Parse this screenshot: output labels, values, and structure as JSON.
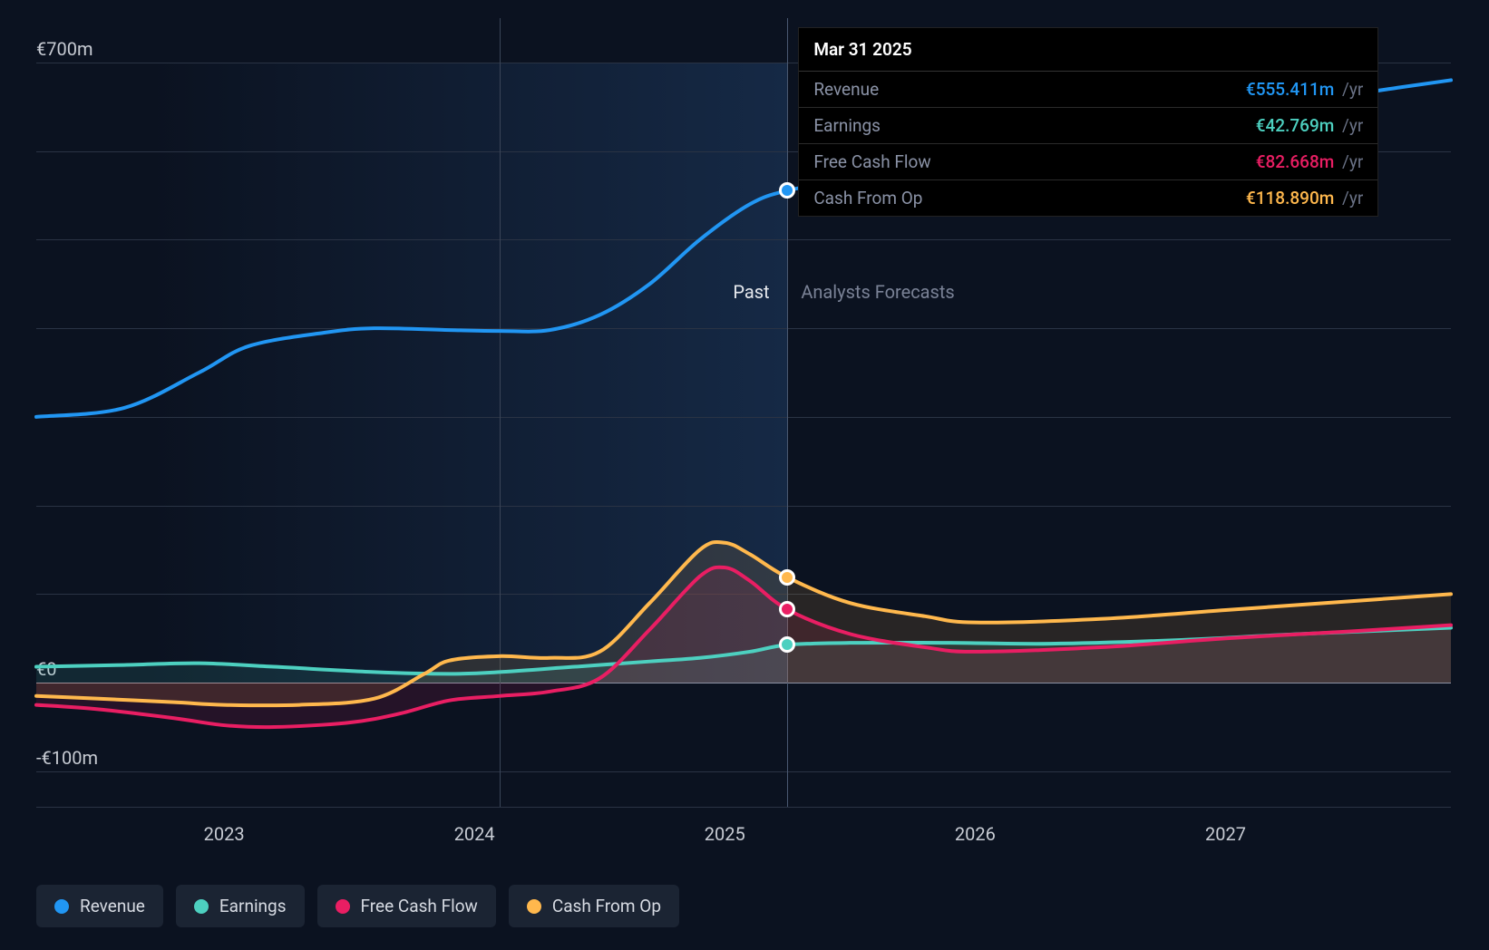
{
  "chart": {
    "type": "line",
    "background_color": "#0b1220",
    "grid_color": "#2a3344",
    "zero_line_color": "#8a92a6",
    "divider_color": "#3a4558",
    "cursor_color": "#4a5870",
    "text_color": "#c8ccd4",
    "label_fontsize": 20,
    "past_gradient_from": "rgba(30,60,100,0.55)",
    "past_gradient_to": "rgba(30,60,100,0.0)",
    "x_axis": {
      "ticks": [
        2023,
        2024,
        2025,
        2026,
        2027
      ],
      "min": 2022.25,
      "max": 2027.9,
      "divider_at": 2024.1,
      "cursor_at": 2025.25
    },
    "y_axis": {
      "ticks": [
        {
          "value": 700,
          "label": "€700m"
        },
        {
          "value": 0,
          "label": "€0"
        },
        {
          "value": -100,
          "label": "-€100m"
        }
      ],
      "minor_grid": [
        600,
        500,
        400,
        300,
        200,
        100
      ],
      "min": -140,
      "max": 750
    },
    "region_labels": {
      "past": "Past",
      "forecast": "Analysts Forecasts"
    },
    "series": [
      {
        "key": "revenue",
        "label": "Revenue",
        "color": "#2196f3",
        "line_width": 4,
        "points": [
          [
            2022.25,
            300
          ],
          [
            2022.6,
            310
          ],
          [
            2022.9,
            350
          ],
          [
            2023.1,
            380
          ],
          [
            2023.4,
            395
          ],
          [
            2023.6,
            400
          ],
          [
            2023.9,
            398
          ],
          [
            2024.1,
            397
          ],
          [
            2024.3,
            398
          ],
          [
            2024.5,
            415
          ],
          [
            2024.7,
            450
          ],
          [
            2024.9,
            500
          ],
          [
            2025.1,
            540
          ],
          [
            2025.25,
            555.411
          ],
          [
            2025.5,
            568
          ],
          [
            2025.8,
            580
          ],
          [
            2026.1,
            595
          ],
          [
            2026.5,
            615
          ],
          [
            2026.9,
            635
          ],
          [
            2027.3,
            655
          ],
          [
            2027.7,
            672
          ],
          [
            2027.9,
            680
          ]
        ]
      },
      {
        "key": "earnings",
        "label": "Earnings",
        "color": "#4dd0c0",
        "line_width": 4,
        "points": [
          [
            2022.25,
            18
          ],
          [
            2022.6,
            20
          ],
          [
            2022.9,
            22
          ],
          [
            2023.2,
            18
          ],
          [
            2023.6,
            12
          ],
          [
            2023.9,
            10
          ],
          [
            2024.1,
            12
          ],
          [
            2024.4,
            18
          ],
          [
            2024.7,
            24
          ],
          [
            2024.9,
            28
          ],
          [
            2025.1,
            35
          ],
          [
            2025.25,
            42.769
          ],
          [
            2025.5,
            45
          ],
          [
            2025.9,
            45
          ],
          [
            2026.3,
            44
          ],
          [
            2026.8,
            48
          ],
          [
            2027.3,
            55
          ],
          [
            2027.9,
            62
          ]
        ]
      },
      {
        "key": "fcf",
        "label": "Free Cash Flow",
        "color": "#e91e63",
        "line_width": 4,
        "points": [
          [
            2022.25,
            -25
          ],
          [
            2022.5,
            -30
          ],
          [
            2022.8,
            -40
          ],
          [
            2023.0,
            -48
          ],
          [
            2023.2,
            -50
          ],
          [
            2023.5,
            -45
          ],
          [
            2023.7,
            -35
          ],
          [
            2023.9,
            -20
          ],
          [
            2024.1,
            -15
          ],
          [
            2024.3,
            -10
          ],
          [
            2024.5,
            5
          ],
          [
            2024.7,
            60
          ],
          [
            2024.9,
            120
          ],
          [
            2025.0,
            130
          ],
          [
            2025.1,
            115
          ],
          [
            2025.25,
            82.668
          ],
          [
            2025.5,
            55
          ],
          [
            2025.8,
            40
          ],
          [
            2026.0,
            35
          ],
          [
            2026.5,
            40
          ],
          [
            2027.0,
            50
          ],
          [
            2027.5,
            58
          ],
          [
            2027.9,
            65
          ]
        ]
      },
      {
        "key": "cfo",
        "label": "Cash From Op",
        "color": "#ffb84d",
        "line_width": 4,
        "points": [
          [
            2022.25,
            -15
          ],
          [
            2022.5,
            -18
          ],
          [
            2022.8,
            -22
          ],
          [
            2023.0,
            -25
          ],
          [
            2023.3,
            -25
          ],
          [
            2023.6,
            -18
          ],
          [
            2023.8,
            10
          ],
          [
            2023.9,
            25
          ],
          [
            2024.1,
            30
          ],
          [
            2024.3,
            28
          ],
          [
            2024.5,
            35
          ],
          [
            2024.7,
            90
          ],
          [
            2024.9,
            150
          ],
          [
            2025.0,
            158
          ],
          [
            2025.1,
            145
          ],
          [
            2025.25,
            118.89
          ],
          [
            2025.5,
            90
          ],
          [
            2025.8,
            75
          ],
          [
            2026.0,
            68
          ],
          [
            2026.5,
            72
          ],
          [
            2027.0,
            82
          ],
          [
            2027.5,
            92
          ],
          [
            2027.9,
            100
          ]
        ]
      }
    ],
    "markers_at_x": 2025.25
  },
  "tooltip": {
    "date": "Mar 31 2025",
    "unit": "/yr",
    "rows": [
      {
        "label": "Revenue",
        "value": "€555.411m",
        "color": "#2196f3"
      },
      {
        "label": "Earnings",
        "value": "€42.769m",
        "color": "#4dd0c0"
      },
      {
        "label": "Free Cash Flow",
        "value": "€82.668m",
        "color": "#e91e63"
      },
      {
        "label": "Cash From Op",
        "value": "€118.890m",
        "color": "#ffb84d"
      }
    ]
  },
  "legend": {
    "bg": "#1b2433",
    "items": [
      {
        "label": "Revenue",
        "color": "#2196f3"
      },
      {
        "label": "Earnings",
        "color": "#4dd0c0"
      },
      {
        "label": "Free Cash Flow",
        "color": "#e91e63"
      },
      {
        "label": "Cash From Op",
        "color": "#ffb84d"
      }
    ]
  }
}
